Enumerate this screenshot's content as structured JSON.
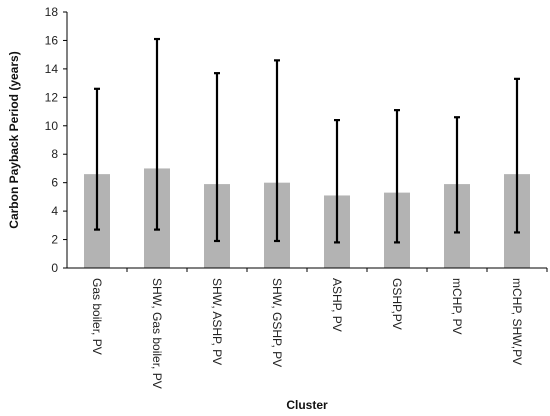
{
  "chart_data": {
    "type": "bar",
    "title": "",
    "xlabel": "Cluster",
    "ylabel": "Carbon Payback Period (years)",
    "ylim": [
      0,
      18
    ],
    "yticks": [
      0,
      2,
      4,
      6,
      8,
      10,
      12,
      14,
      16,
      18
    ],
    "ytick_labels": [
      "0",
      "2",
      "4",
      "6",
      "8",
      "10",
      "12",
      "14",
      "16",
      "18"
    ],
    "grid": false,
    "legend": "none",
    "categories": [
      "Gas boiler, PV",
      "SHW, Gas boiler, PV",
      "SHW, ASHP, PV",
      "SHW, GSHP, PV",
      "ASHP, PV",
      "GSHP,PV",
      "mCHP, PV",
      "mCHP, SHW,PV"
    ],
    "values": [
      6.6,
      7.0,
      5.9,
      6.0,
      5.1,
      5.3,
      5.9,
      6.6
    ],
    "error_low": [
      2.7,
      2.7,
      1.9,
      1.9,
      1.8,
      1.8,
      2.5,
      2.5
    ],
    "error_high": [
      12.6,
      16.1,
      13.7,
      14.6,
      10.4,
      11.1,
      10.6,
      13.3
    ],
    "colors": {
      "bar": "#b3b3b3",
      "error_bar": "#000000",
      "axis": "#000000"
    }
  }
}
